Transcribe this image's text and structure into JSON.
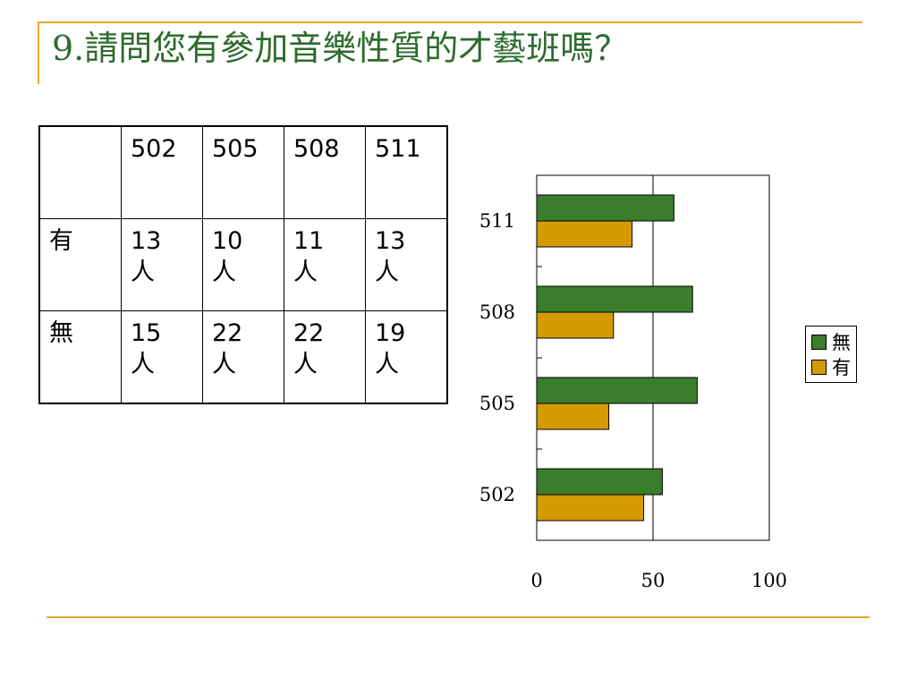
{
  "title": "9.請問您有參加音樂性質的才藝班嗎？",
  "table": {
    "header": [
      "",
      "502",
      "505",
      "508",
      "511"
    ],
    "rows": [
      {
        "label": "有",
        "cells": [
          {
            "num": "13",
            "unit": "人"
          },
          {
            "num": "10",
            "unit": "人"
          },
          {
            "num": "11",
            "unit": "人"
          },
          {
            "num": "13",
            "unit": "人"
          }
        ]
      },
      {
        "label": "無",
        "cells": [
          {
            "num": "15",
            "unit": "人"
          },
          {
            "num": "22",
            "unit": "人"
          },
          {
            "num": "22",
            "unit": "人"
          },
          {
            "num": "19",
            "unit": "人"
          }
        ]
      }
    ]
  },
  "legend": [
    {
      "label": "無",
      "color": "#3a7d2c"
    },
    {
      "label": "有",
      "color": "#d49a00"
    }
  ],
  "chart_data": {
    "type": "bar",
    "orientation": "horizontal",
    "categories": [
      "502",
      "505",
      "508",
      "511"
    ],
    "series": [
      {
        "name": "無",
        "color": "#3a7d2c",
        "values": [
          54,
          69,
          67,
          59
        ]
      },
      {
        "name": "有",
        "color": "#d49a00",
        "values": [
          46,
          31,
          33,
          41
        ]
      }
    ],
    "xlim": [
      0,
      100
    ],
    "xticks": [
      "0",
      "50",
      "100"
    ],
    "gridlines": [
      50
    ],
    "legend_position": "right"
  }
}
